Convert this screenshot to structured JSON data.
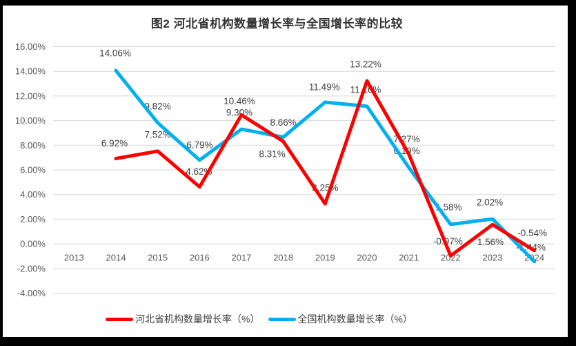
{
  "chart_data": {
    "type": "line",
    "title": "图2 河北省机构数量增长率与全国增长率的比较",
    "categories": [
      "2013",
      "2014",
      "2015",
      "2016",
      "2017",
      "2018",
      "2019",
      "2020",
      "2021",
      "2022",
      "2023",
      "2024"
    ],
    "y_axis": {
      "min": -4,
      "max": 16,
      "step": 2,
      "tick_format": "0.00%",
      "tick_labels": [
        "16.00%",
        "14.00%",
        "12.00%",
        "10.00%",
        "8.00%",
        "6.00%",
        "4.00%",
        "2.00%",
        "0.00%",
        "-2.00%",
        "-4.00%"
      ]
    },
    "grid": true,
    "legend_position": "bottom",
    "series": [
      {
        "name": "河北省机构数量增长率（%）",
        "color": "#ff0000",
        "values": [
          null,
          6.92,
          7.52,
          4.62,
          10.46,
          8.31,
          3.25,
          13.22,
          7.27,
          -0.97,
          1.56,
          -0.54
        ],
        "data_labels": [
          null,
          "6.92%",
          "7.52%",
          "4.62%",
          "10.46%",
          "8.31%",
          "3.25%",
          "13.22%",
          "7.27%",
          "-0.97%",
          "1.56%",
          "-0.54%"
        ]
      },
      {
        "name": "全国机构数量增长率（%）",
        "color": "#00b0f0",
        "values": [
          null,
          14.06,
          9.82,
          6.79,
          9.3,
          8.66,
          11.49,
          11.16,
          6.19,
          1.58,
          2.02,
          -1.44
        ],
        "data_labels": [
          null,
          "14.06%",
          "9.82%",
          "6.79%",
          "9.30%",
          "8.66%",
          "11.49%",
          "11.16%",
          "6.19%",
          "1.58%",
          "2.02%",
          "-1.44%"
        ]
      }
    ],
    "label_offsets": [
      [
        null,
        [
          -2,
          -22
        ],
        [
          0,
          -24
        ],
        [
          -1,
          -22
        ],
        [
          -3,
          -20
        ],
        [
          -16,
          18
        ],
        [
          0,
          -23
        ],
        [
          -2,
          -24
        ],
        [
          -3,
          -22
        ],
        [
          -4,
          -21
        ],
        [
          -3,
          25
        ],
        [
          -3,
          -25
        ]
      ],
      [
        null,
        [
          -1,
          -25
        ],
        [
          0,
          -24
        ],
        [
          0,
          -22
        ],
        [
          -3,
          -24
        ],
        [
          0,
          -21
        ],
        [
          -1,
          -22
        ],
        [
          -2,
          -24
        ],
        [
          -3,
          -24
        ],
        [
          -3,
          -25
        ],
        [
          -4,
          -24
        ],
        [
          -5,
          -21
        ]
      ]
    ],
    "colors": {
      "grid": "#d9d9d9",
      "axis_text": "#595959",
      "data_label_text": "#404040",
      "frame_border": "#000000"
    }
  }
}
